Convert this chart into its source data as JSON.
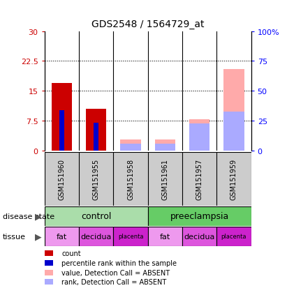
{
  "title": "GDS2548 / 1564729_at",
  "samples": [
    "GSM151960",
    "GSM151955",
    "GSM151958",
    "GSM151961",
    "GSM151957",
    "GSM151959"
  ],
  "count_values": [
    17.0,
    10.5,
    0,
    0,
    0,
    0
  ],
  "percentile_values": [
    10.2,
    7.1,
    0,
    0,
    0,
    0
  ],
  "absent_value_values": [
    0,
    0,
    2.8,
    2.8,
    8.0,
    20.5
  ],
  "absent_rank_values": [
    0,
    0,
    1.8,
    1.8,
    6.8,
    9.8
  ],
  "left_ylim": [
    0,
    30
  ],
  "left_yticks": [
    0,
    7.5,
    15,
    22.5,
    30
  ],
  "left_yticklabels": [
    "0",
    "7.5",
    "15",
    "22.5",
    "30"
  ],
  "right_yticklabels": [
    "0",
    "25",
    "50",
    "75",
    "100%"
  ],
  "bar_width": 0.6,
  "pct_bar_width": 0.15,
  "color_count": "#cc0000",
  "color_percentile": "#0000cc",
  "color_absent_value": "#ffaaaa",
  "color_absent_rank": "#aaaaff",
  "disease_control_color": "#aaddaa",
  "disease_pre_color": "#66cc66",
  "tissue_colors": [
    "#ee99ee",
    "#dd55dd",
    "#cc22cc",
    "#ee99ee",
    "#dd55dd",
    "#cc22cc"
  ],
  "tissue_labels": [
    "fat",
    "decidua",
    "placenta",
    "fat",
    "decidua",
    "placenta"
  ],
  "tissue_fontsizes": [
    8,
    8,
    6,
    8,
    8,
    6
  ],
  "legend_items": [
    {
      "label": "count",
      "color": "#cc0000"
    },
    {
      "label": "percentile rank within the sample",
      "color": "#0000cc"
    },
    {
      "label": "value, Detection Call = ABSENT",
      "color": "#ffaaaa"
    },
    {
      "label": "rank, Detection Call = ABSENT",
      "color": "#aaaaff"
    }
  ]
}
